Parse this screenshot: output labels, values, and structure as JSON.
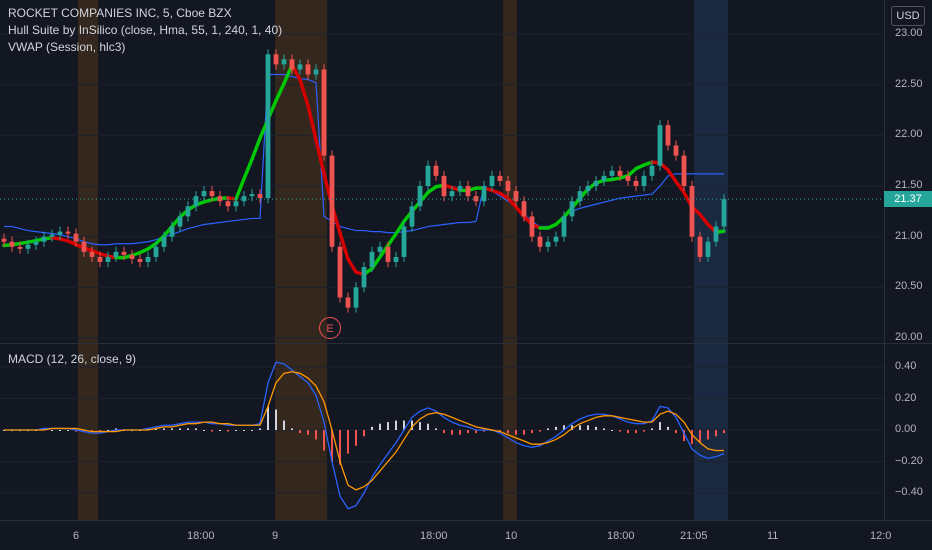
{
  "legend": {
    "symbol": "ROCKET COMPANIES INC, 5, Cboe BZX",
    "hull": "Hull Suite by InSilico (close, Hma, 55, 1, 240, 1, 40)",
    "vwap": "VWAP (Session, hlc3)",
    "macd": "MACD (12, 26, close, 9)"
  },
  "currency_button": "USD",
  "last_price": "21.37",
  "event_marker": "E",
  "colors": {
    "background": "#131722",
    "up": "#26a69a",
    "down": "#ef5350",
    "hull_up": "#00c805",
    "hull_down": "#d50000",
    "vwap": "#2962ff",
    "macd_line": "#2962ff",
    "signal_line": "#ff9800",
    "session_shade": "#3b2a1c",
    "highlight_shade": "#1c2b45"
  },
  "price_axis_labels": [
    "23.00",
    "22.50",
    "22.00",
    "21.50",
    "21.00",
    "20.50",
    "20.00"
  ],
  "macd_axis_labels": [
    "0.40",
    "0.20",
    "0.00",
    "−0.20",
    "−0.40"
  ],
  "time_axis_labels": [
    "6",
    "18:00",
    "9",
    "18:00",
    "10",
    "18:00",
    "21:05",
    "11",
    "12:0"
  ],
  "chart_data": {
    "type": "candlestick",
    "price_axis": {
      "min": 20.0,
      "max": 23.0,
      "ticks": [
        20.0,
        20.5,
        21.0,
        21.5,
        22.0,
        22.5,
        23.0
      ]
    },
    "macd_axis": {
      "ticks": [
        0.4,
        0.2,
        0.0,
        -0.2,
        -0.4
      ]
    },
    "last_price": 21.37,
    "close": [
      20.95,
      20.9,
      20.88,
      20.92,
      20.95,
      21.0,
      21.02,
      21.05,
      21.03,
      20.95,
      20.85,
      20.8,
      20.75,
      20.8,
      20.85,
      20.82,
      20.78,
      20.75,
      20.8,
      20.9,
      21.0,
      21.1,
      21.2,
      21.3,
      21.4,
      21.45,
      21.4,
      21.35,
      21.3,
      21.35,
      21.4,
      21.42,
      21.38,
      22.8,
      22.7,
      22.75,
      22.65,
      22.7,
      22.6,
      22.65,
      21.8,
      20.9,
      20.4,
      20.3,
      20.5,
      20.7,
      20.85,
      20.9,
      20.75,
      20.8,
      21.1,
      21.3,
      21.5,
      21.7,
      21.6,
      21.4,
      21.45,
      21.5,
      21.4,
      21.35,
      21.5,
      21.6,
      21.55,
      21.45,
      21.35,
      21.2,
      21.0,
      20.9,
      20.95,
      21.0,
      21.2,
      21.35,
      21.45,
      21.5,
      21.55,
      21.6,
      21.65,
      21.6,
      21.55,
      21.5,
      21.6,
      21.7,
      22.1,
      21.9,
      21.8,
      21.5,
      21.0,
      20.8,
      20.95,
      21.1,
      21.37
    ],
    "vwap": [
      21.1,
      21.1,
      21.08,
      21.06,
      21.05,
      21.04,
      21.03,
      21.02,
      21.0,
      20.98,
      20.95,
      20.93,
      20.92,
      20.92,
      20.93,
      20.93,
      20.93,
      20.94,
      20.95,
      20.97,
      21.0,
      21.02,
      21.05,
      21.08,
      21.1,
      21.12,
      21.13,
      21.14,
      21.15,
      21.16,
      21.17,
      21.18,
      21.18,
      22.6,
      22.6,
      22.6,
      22.58,
      22.56,
      22.55,
      22.52,
      21.2,
      21.15,
      21.1,
      21.08,
      21.06,
      21.06,
      21.05,
      21.05,
      21.04,
      21.04,
      21.05,
      21.06,
      21.08,
      21.1,
      21.11,
      21.12,
      21.13,
      21.14,
      21.14,
      21.15,
      21.5,
      21.45,
      21.4,
      21.35,
      21.3,
      21.22,
      21.15,
      21.1,
      21.1,
      21.12,
      21.2,
      21.25,
      21.28,
      21.3,
      21.32,
      21.34,
      21.36,
      21.38,
      21.39,
      21.4,
      21.41,
      21.42,
      21.5,
      21.6,
      21.62,
      21.62,
      21.62,
      21.62,
      21.62,
      21.62,
      21.62
    ],
    "macd": [
      0.0,
      0.0,
      0.0,
      0.0,
      0.0,
      0.01,
      0.01,
      0.01,
      0.01,
      0.0,
      -0.01,
      -0.02,
      -0.02,
      -0.01,
      0.0,
      0.0,
      0.0,
      0.0,
      0.01,
      0.02,
      0.03,
      0.03,
      0.04,
      0.05,
      0.05,
      0.05,
      0.04,
      0.04,
      0.03,
      0.03,
      0.03,
      0.03,
      0.04,
      0.3,
      0.43,
      0.42,
      0.38,
      0.34,
      0.3,
      0.22,
      0.05,
      -0.2,
      -0.42,
      -0.5,
      -0.48,
      -0.4,
      -0.3,
      -0.22,
      -0.15,
      -0.08,
      0.0,
      0.08,
      0.12,
      0.14,
      0.12,
      0.08,
      0.05,
      0.03,
      0.02,
      0.0,
      0.0,
      0.0,
      -0.02,
      -0.05,
      -0.08,
      -0.1,
      -0.11,
      -0.1,
      -0.07,
      -0.04,
      0.0,
      0.04,
      0.07,
      0.09,
      0.1,
      0.1,
      0.09,
      0.07,
      0.05,
      0.04,
      0.04,
      0.06,
      0.15,
      0.14,
      0.08,
      -0.02,
      -0.12,
      -0.16,
      -0.18,
      -0.17,
      -0.15
    ],
    "signal": [
      0.0,
      0.0,
      0.0,
      0.0,
      0.0,
      0.0,
      0.01,
      0.01,
      0.01,
      0.01,
      0.0,
      -0.01,
      -0.01,
      -0.01,
      -0.01,
      0.0,
      0.0,
      0.0,
      0.0,
      0.01,
      0.02,
      0.02,
      0.03,
      0.04,
      0.04,
      0.05,
      0.05,
      0.04,
      0.04,
      0.03,
      0.03,
      0.03,
      0.03,
      0.15,
      0.3,
      0.36,
      0.37,
      0.36,
      0.33,
      0.28,
      0.18,
      0.0,
      -0.2,
      -0.35,
      -0.38,
      -0.36,
      -0.32,
      -0.26,
      -0.2,
      -0.14,
      -0.06,
      0.02,
      0.07,
      0.1,
      0.11,
      0.1,
      0.08,
      0.06,
      0.04,
      0.02,
      0.01,
      0.0,
      -0.01,
      -0.03,
      -0.05,
      -0.07,
      -0.09,
      -0.09,
      -0.08,
      -0.06,
      -0.03,
      0.01,
      0.04,
      0.06,
      0.08,
      0.09,
      0.09,
      0.08,
      0.07,
      0.06,
      0.05,
      0.05,
      0.1,
      0.12,
      0.1,
      0.05,
      -0.03,
      -0.08,
      -0.12,
      -0.13,
      -0.13
    ]
  }
}
